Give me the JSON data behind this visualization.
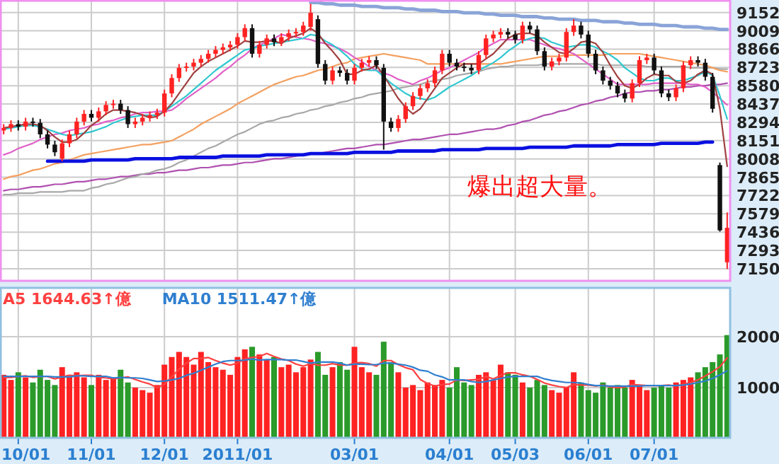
{
  "chart_data": [
    {
      "type": "candlestick",
      "categories": [
        null,
        null,
        null,
        null,
        null,
        null,
        null,
        null,
        null,
        null,
        null,
        null,
        null,
        null,
        null,
        null,
        null,
        null,
        null,
        null,
        null,
        null,
        null,
        null,
        null,
        null,
        null,
        null,
        null,
        null,
        null,
        null,
        null,
        null,
        null,
        null,
        null,
        null,
        null,
        null,
        null,
        null,
        null,
        null,
        null,
        null,
        null,
        null,
        null,
        null,
        null,
        null,
        null,
        null,
        null,
        null,
        null,
        null,
        null,
        null,
        null,
        null,
        null,
        null,
        null,
        null,
        null,
        null,
        null,
        null,
        null,
        null,
        null,
        null,
        null,
        null,
        null,
        null,
        null,
        null,
        null,
        null,
        null,
        null,
        null,
        null,
        null,
        null,
        null,
        null,
        null,
        null,
        null,
        null,
        null,
        null,
        null,
        null,
        null,
        null
      ],
      "ohlc": [
        [
          8230,
          8280,
          8200,
          8250
        ],
        [
          8250,
          8310,
          8220,
          8280
        ],
        [
          8280,
          8310,
          8230,
          8260
        ],
        [
          8260,
          8330,
          8230,
          8300
        ],
        [
          8300,
          8330,
          8260,
          8290
        ],
        [
          8290,
          8320,
          8170,
          8200
        ],
        [
          8200,
          8230,
          8090,
          8120
        ],
        [
          8120,
          8150,
          8030,
          8060
        ],
        [
          8010,
          8160,
          7990,
          8130
        ],
        [
          8130,
          8230,
          8100,
          8200
        ],
        [
          8200,
          8330,
          8170,
          8300
        ],
        [
          8300,
          8390,
          8270,
          8360
        ],
        [
          8360,
          8390,
          8300,
          8330
        ],
        [
          8330,
          8410,
          8300,
          8380
        ],
        [
          8380,
          8460,
          8350,
          8430
        ],
        [
          8430,
          8470,
          8400,
          8440
        ],
        [
          8440,
          8470,
          8360,
          8390
        ],
        [
          8390,
          8420,
          8250,
          8280
        ],
        [
          8280,
          8330,
          8250,
          8300
        ],
        [
          8300,
          8360,
          8270,
          8330
        ],
        [
          8330,
          8380,
          8300,
          8350
        ],
        [
          8350,
          8400,
          8320,
          8370
        ],
        [
          8370,
          8550,
          8340,
          8520
        ],
        [
          8520,
          8670,
          8490,
          8640
        ],
        [
          8640,
          8750,
          8610,
          8720
        ],
        [
          8720,
          8760,
          8690,
          8730
        ],
        [
          8730,
          8790,
          8700,
          8760
        ],
        [
          8760,
          8820,
          8730,
          8790
        ],
        [
          8790,
          8860,
          8760,
          8830
        ],
        [
          8830,
          8890,
          8800,
          8860
        ],
        [
          8860,
          8910,
          8830,
          8880
        ],
        [
          8880,
          8930,
          8850,
          8900
        ],
        [
          8900,
          8990,
          8870,
          8960
        ],
        [
          8960,
          9060,
          8930,
          9030
        ],
        [
          9030,
          9060,
          8800,
          8830
        ],
        [
          8830,
          8930,
          8800,
          8900
        ],
        [
          8900,
          8980,
          8870,
          8950
        ],
        [
          8950,
          8980,
          8890,
          8920
        ],
        [
          8920,
          8990,
          8890,
          8960
        ],
        [
          8960,
          9020,
          8930,
          8990
        ],
        [
          8990,
          9030,
          8960,
          9000
        ],
        [
          9000,
          9080,
          8970,
          9050
        ],
        [
          9040,
          9220,
          9010,
          9150
        ],
        [
          9100,
          9130,
          8720,
          8750
        ],
        [
          8750,
          8780,
          8590,
          8620
        ],
        [
          8620,
          8730,
          8590,
          8700
        ],
        [
          8700,
          8730,
          8650,
          8680
        ],
        [
          8680,
          8710,
          8590,
          8620
        ],
        [
          8620,
          8750,
          8590,
          8720
        ],
        [
          8720,
          8790,
          8690,
          8760
        ],
        [
          8760,
          8810,
          8730,
          8780
        ],
        [
          8780,
          8810,
          8710,
          8740
        ],
        [
          8720,
          8750,
          8080,
          8300
        ],
        [
          8300,
          8330,
          8220,
          8250
        ],
        [
          8250,
          8350,
          8220,
          8320
        ],
        [
          8320,
          8450,
          8290,
          8420
        ],
        [
          8420,
          8530,
          8390,
          8500
        ],
        [
          8500,
          8590,
          8470,
          8560
        ],
        [
          8560,
          8630,
          8530,
          8600
        ],
        [
          8600,
          8730,
          8570,
          8700
        ],
        [
          8700,
          8860,
          8670,
          8830
        ],
        [
          8830,
          8860,
          8730,
          8760
        ],
        [
          8760,
          8790,
          8700,
          8730
        ],
        [
          8730,
          8760,
          8690,
          8720
        ],
        [
          8720,
          8750,
          8670,
          8700
        ],
        [
          8700,
          8850,
          8670,
          8820
        ],
        [
          8820,
          8980,
          8790,
          8950
        ],
        [
          8950,
          9010,
          8920,
          8980
        ],
        [
          8980,
          9030,
          8950,
          9000
        ],
        [
          9000,
          9030,
          8950,
          8980
        ],
        [
          8980,
          9010,
          8910,
          8940
        ],
        [
          8940,
          9080,
          8910,
          9050
        ],
        [
          9050,
          9080,
          8990,
          9020
        ],
        [
          9020,
          9050,
          8820,
          8850
        ],
        [
          8850,
          8880,
          8700,
          8730
        ],
        [
          8730,
          8800,
          8700,
          8770
        ],
        [
          8770,
          8830,
          8740,
          8800
        ],
        [
          8800,
          9030,
          8770,
          9000
        ],
        [
          9000,
          9100,
          8970,
          9050
        ],
        [
          9050,
          9080,
          8950,
          8980
        ],
        [
          8980,
          9010,
          8800,
          8830
        ],
        [
          8830,
          8860,
          8670,
          8700
        ],
        [
          8700,
          8730,
          8590,
          8620
        ],
        [
          8620,
          8650,
          8550,
          8580
        ],
        [
          8580,
          8610,
          8490,
          8520
        ],
        [
          8520,
          8550,
          8450,
          8480
        ],
        [
          8480,
          8630,
          8450,
          8600
        ],
        [
          8600,
          8810,
          8570,
          8780
        ],
        [
          8780,
          8830,
          8750,
          8800
        ],
        [
          8800,
          8830,
          8670,
          8700
        ],
        [
          8700,
          8730,
          8490,
          8520
        ],
        [
          8520,
          8550,
          8460,
          8490
        ],
        [
          8490,
          8590,
          8460,
          8560
        ],
        [
          8560,
          8770,
          8530,
          8740
        ],
        [
          8740,
          8810,
          8710,
          8780
        ],
        [
          8780,
          8810,
          8730,
          8760
        ],
        [
          8760,
          8790,
          8620,
          8650
        ],
        [
          8650,
          8680,
          8370,
          8400
        ],
        [
          7960,
          7980,
          7440,
          7450
        ],
        [
          7200,
          7590,
          7148,
          7470
        ]
      ],
      "colors": [
        "#ff2222",
        "#ff2222",
        "#111111",
        "#ff2222",
        "#111111",
        "#111111",
        "#111111",
        "#111111",
        "#ff2222",
        "#ff2222",
        "#ff2222",
        "#ff2222",
        "#111111",
        "#ff2222",
        "#ff2222",
        "#ff2222",
        "#111111",
        "#111111",
        "#ff2222",
        "#ff2222",
        "#ff2222",
        "#ff2222",
        "#ff2222",
        "#ff2222",
        "#ff2222",
        "#ff2222",
        "#ff2222",
        "#ff2222",
        "#ff2222",
        "#ff2222",
        "#ff2222",
        "#ff2222",
        "#ff2222",
        "#ff2222",
        "#111111",
        "#ff2222",
        "#ff2222",
        "#111111",
        "#ff2222",
        "#ff2222",
        "#ff2222",
        "#ff2222",
        "#ff2222",
        "#111111",
        "#111111",
        "#ff2222",
        "#111111",
        "#111111",
        "#ff2222",
        "#ff2222",
        "#ff2222",
        "#111111",
        "#111111",
        "#111111",
        "#ff2222",
        "#ff2222",
        "#ff2222",
        "#ff2222",
        "#ff2222",
        "#ff2222",
        "#ff2222",
        "#111111",
        "#111111",
        "#111111",
        "#111111",
        "#ff2222",
        "#ff2222",
        "#ff2222",
        "#ff2222",
        "#111111",
        "#111111",
        "#ff2222",
        "#111111",
        "#111111",
        "#111111",
        "#ff2222",
        "#ff2222",
        "#ff2222",
        "#ff2222",
        "#111111",
        "#111111",
        "#111111",
        "#111111",
        "#111111",
        "#111111",
        "#111111",
        "#ff2222",
        "#ff2222",
        "#ff2222",
        "#111111",
        "#111111",
        "#111111",
        "#ff2222",
        "#ff2222",
        "#ff2222",
        "#111111",
        "#111111",
        "#111111",
        "#111111",
        "#ff2222"
      ],
      "series": [
        {
          "type": "line",
          "color": "#b050b0",
          "values": [
            7760,
            7770,
            7770,
            7780,
            7790,
            7790,
            7800,
            7810,
            7810,
            7820,
            7830,
            7830,
            7840,
            7850,
            7850,
            7860,
            7870,
            7870,
            7880,
            7890,
            7890,
            7900,
            7900,
            7910,
            7920,
            7920,
            7930,
            7940,
            7940,
            7950,
            7960,
            7960,
            7970,
            7980,
            7980,
            7990,
            8000,
            8010,
            8010,
            8020,
            8030,
            8040,
            8050,
            8050,
            8060,
            8070,
            8080,
            8090,
            8090,
            8100,
            8110,
            8120,
            8120,
            8130,
            8140,
            8150,
            8160,
            8160,
            8170,
            8180,
            8190,
            8200,
            8200,
            8210,
            8220,
            8230,
            8240,
            8240,
            8250,
            8270,
            8280,
            8300,
            8310,
            8330,
            8350,
            8360,
            8380,
            8390,
            8410,
            8430,
            8440,
            8460,
            8470,
            8490,
            8500,
            8520,
            8530,
            8530,
            8540,
            8540,
            8550,
            8550,
            8560,
            8570,
            8570,
            8580,
            8580,
            8590,
            8590,
            8600
          ]
        },
        {
          "type": "line",
          "color": "#a8a8a8",
          "values": [
            7730,
            7730,
            7740,
            7740,
            7740,
            7750,
            7750,
            7750,
            7750,
            7760,
            7760,
            7760,
            7780,
            7790,
            7810,
            7820,
            7840,
            7860,
            7870,
            7890,
            7900,
            7920,
            7930,
            7950,
            7980,
            8000,
            8030,
            8060,
            8090,
            8110,
            8140,
            8170,
            8200,
            8220,
            8250,
            8280,
            8300,
            8310,
            8330,
            8340,
            8360,
            8370,
            8390,
            8400,
            8420,
            8430,
            8450,
            8460,
            8480,
            8490,
            8510,
            8520,
            8530,
            8540,
            8560,
            8570,
            8580,
            8590,
            8610,
            8620,
            8630,
            8640,
            8660,
            8670,
            8680,
            8690,
            8710,
            8720,
            8730,
            8730,
            8740,
            8740,
            8740,
            8740,
            8750,
            8750,
            8750,
            8750,
            8750,
            8750,
            8750,
            8750,
            8740,
            8740,
            8740,
            8740,
            8740,
            8740,
            8730,
            8730,
            8730,
            8730,
            8730,
            8730,
            8720,
            8720,
            8720,
            8720,
            8710,
            8710
          ]
        },
        {
          "type": "line",
          "color": "#f4a060",
          "values": [
            7850,
            7870,
            7880,
            7900,
            7920,
            7930,
            7950,
            7970,
            7980,
            8000,
            8020,
            8040,
            8050,
            8060,
            8070,
            8080,
            8090,
            8100,
            8110,
            8120,
            8120,
            8130,
            8140,
            8150,
            8180,
            8210,
            8240,
            8280,
            8310,
            8340,
            8370,
            8400,
            8440,
            8470,
            8500,
            8530,
            8560,
            8590,
            8610,
            8630,
            8650,
            8660,
            8680,
            8700,
            8710,
            8730,
            8750,
            8760,
            8790,
            8800,
            8810,
            8820,
            8830,
            8820,
            8810,
            8800,
            8790,
            8780,
            8750,
            8750,
            8750,
            8750,
            8750,
            8750,
            8750,
            8750,
            8750,
            8750,
            8750,
            8760,
            8770,
            8780,
            8790,
            8800,
            8810,
            8810,
            8810,
            8820,
            8820,
            8820,
            8820,
            8820,
            8820,
            8830,
            8830,
            8830,
            8830,
            8830,
            8820,
            8810,
            8800,
            8790,
            8780,
            8770,
            8760,
            8750,
            8740,
            8720,
            8700,
            8690
          ]
        },
        {
          "type": "line",
          "color": "#e060c8",
          "values": [
            8040,
            8060,
            8090,
            8110,
            8130,
            8160,
            8180,
            8200,
            8210,
            8230,
            8240,
            8250,
            8270,
            8280,
            8300,
            8310,
            8330,
            8340,
            8360,
            8370,
            8370,
            8380,
            8380,
            8390,
            8430,
            8480,
            8520,
            8560,
            8600,
            8640,
            8690,
            8730,
            8780,
            8820,
            8870,
            8900,
            8920,
            8950,
            8980,
            8970,
            8960,
            8950,
            8940,
            8920,
            8910,
            8890,
            8870,
            8840,
            8800,
            8770,
            8730,
            8700,
            8680,
            8660,
            8630,
            8610,
            8590,
            8620,
            8640,
            8670,
            8700,
            8720,
            8750,
            8780,
            8810,
            8840,
            8880,
            8910,
            8940,
            8940,
            8940,
            8940,
            8940,
            8920,
            8900,
            8880,
            8870,
            8850,
            8830,
            8790,
            8750,
            8710,
            8670,
            8630,
            8590,
            8590,
            8590,
            8590,
            8590,
            8600,
            8600,
            8600,
            8600,
            8600,
            8590,
            8590,
            8570,
            8530,
            8480,
            8430
          ]
        },
        {
          "type": "line",
          "color": "#30c8d0",
          "values": [
            8240,
            8250,
            8260,
            8270,
            8270,
            8260,
            8240,
            8220,
            8200,
            8190,
            8200,
            8210,
            8220,
            8240,
            8260,
            8290,
            8310,
            8330,
            8340,
            8350,
            8350,
            8350,
            8380,
            8420,
            8460,
            8500,
            8550,
            8600,
            8650,
            8700,
            8740,
            8780,
            8820,
            8860,
            8870,
            8890,
            8900,
            8910,
            8920,
            8930,
            8940,
            8950,
            8980,
            8970,
            8930,
            8900,
            8860,
            8810,
            8750,
            8710,
            8700,
            8700,
            8650,
            8600,
            8560,
            8520,
            8490,
            8480,
            8470,
            8490,
            8530,
            8570,
            8600,
            8630,
            8660,
            8700,
            8730,
            8760,
            8800,
            8850,
            8890,
            8930,
            8950,
            8960,
            8950,
            8920,
            8900,
            8880,
            8890,
            8900,
            8900,
            8880,
            8850,
            8820,
            8780,
            8720,
            8680,
            8640,
            8620,
            8620,
            8640,
            8640,
            8620,
            8620,
            8640,
            8660,
            8690,
            8660,
            8500,
            8320
          ]
        },
        {
          "type": "line",
          "color": "#a04040",
          "values": [
            8250,
            8260,
            8270,
            8280,
            8280,
            8270,
            8230,
            8180,
            8140,
            8140,
            8160,
            8210,
            8270,
            8310,
            8360,
            8390,
            8390,
            8380,
            8370,
            8350,
            8330,
            8340,
            8380,
            8440,
            8520,
            8600,
            8680,
            8730,
            8770,
            8800,
            8830,
            8860,
            8890,
            8930,
            8920,
            8920,
            8930,
            8930,
            8910,
            8950,
            8970,
            8990,
            9030,
            8990,
            8910,
            8850,
            8780,
            8670,
            8670,
            8700,
            8710,
            8740,
            8660,
            8570,
            8480,
            8410,
            8360,
            8400,
            8480,
            8560,
            8640,
            8680,
            8720,
            8750,
            8750,
            8750,
            8790,
            8830,
            8890,
            8950,
            8980,
            8990,
            8990,
            8970,
            8920,
            8880,
            8840,
            8830,
            8870,
            8920,
            8930,
            8910,
            8840,
            8740,
            8650,
            8580,
            8560,
            8590,
            8640,
            8670,
            8660,
            8660,
            8610,
            8600,
            8620,
            8670,
            8700,
            8670,
            8400,
            7950
          ]
        },
        {
          "type": "line",
          "color": "#0a10e0",
          "values": [
            null,
            null,
            null,
            null,
            null,
            null,
            7990,
            7990,
            7990,
            7990,
            7990,
            7990,
            8000,
            8000,
            8000,
            8000,
            8000,
            8000,
            8010,
            8010,
            8010,
            8010,
            8010,
            8010,
            8020,
            8020,
            8020,
            8020,
            8020,
            8020,
            8030,
            8030,
            8030,
            8030,
            8030,
            8030,
            8040,
            8040,
            8040,
            8040,
            8040,
            8040,
            8050,
            8050,
            8050,
            8050,
            8050,
            8050,
            8060,
            8060,
            8060,
            8060,
            8060,
            8060,
            8070,
            8070,
            8070,
            8070,
            8070,
            8070,
            8080,
            8080,
            8080,
            8080,
            8080,
            8080,
            8090,
            8090,
            8090,
            8090,
            8090,
            8090,
            8100,
            8100,
            8100,
            8100,
            8100,
            8100,
            8110,
            8110,
            8110,
            8110,
            8110,
            8110,
            8120,
            8120,
            8120,
            8120,
            8120,
            8120,
            8130,
            8130,
            8130,
            8130,
            8130,
            8130,
            8140,
            8140,
            null,
            null
          ]
        },
        {
          "type": "line",
          "color": "#8aa4d8",
          "values": [
            null,
            null,
            null,
            null,
            null,
            null,
            null,
            null,
            null,
            null,
            null,
            null,
            null,
            null,
            null,
            null,
            null,
            null,
            null,
            null,
            null,
            null,
            null,
            null,
            null,
            null,
            null,
            null,
            null,
            null,
            null,
            null,
            null,
            null,
            null,
            null,
            null,
            null,
            null,
            null,
            null,
            null,
            9230,
            9230,
            9220,
            9220,
            9210,
            9210,
            9210,
            9200,
            9200,
            9200,
            9190,
            9190,
            9190,
            9180,
            9180,
            9170,
            9170,
            9170,
            9160,
            9160,
            9160,
            9150,
            9150,
            9150,
            9140,
            9140,
            9130,
            9130,
            9130,
            9120,
            9120,
            9120,
            9110,
            9110,
            9100,
            9100,
            9100,
            9090,
            9090,
            9090,
            9080,
            9080,
            9080,
            9070,
            9070,
            9060,
            9060,
            9060,
            9050,
            9050,
            9050,
            9040,
            9040,
            9040,
            9030,
            9030,
            9020,
            9020
          ]
        }
      ],
      "ylim": [
        7050,
        9250
      ],
      "yticks": [
        7150,
        7293,
        7436,
        7579,
        7722,
        7865,
        8008,
        8151,
        8294,
        8437,
        8580,
        8723,
        8866,
        9009,
        9152
      ],
      "grid": true,
      "tick_labels": "y",
      "annotations": [
        "爆出超大量。"
      ]
    },
    {
      "type": "bar",
      "categories": [
        null,
        null,
        "10/01",
        null,
        null,
        null,
        null,
        null,
        null,
        null,
        null,
        null,
        "11/01",
        null,
        null,
        null,
        null,
        null,
        null,
        null,
        null,
        null,
        "12/01",
        null,
        null,
        null,
        null,
        null,
        null,
        null,
        null,
        null,
        "2011/01",
        null,
        null,
        null,
        null,
        null,
        null,
        null,
        null,
        null,
        null,
        null,
        null,
        null,
        null,
        null,
        "03/01",
        null,
        null,
        null,
        null,
        null,
        null,
        null,
        null,
        null,
        null,
        null,
        null,
        "04/01",
        null,
        null,
        null,
        null,
        null,
        null,
        null,
        null,
        "05/03",
        null,
        null,
        null,
        null,
        null,
        null,
        null,
        null,
        null,
        "06/01",
        null,
        null,
        null,
        null,
        null,
        null,
        null,
        null,
        "07/01",
        null,
        null,
        null,
        null,
        null,
        null,
        null,
        null,
        null,
        null
      ],
      "values": [
        1250,
        1150,
        1300,
        1200,
        1100,
        1350,
        1150,
        1050,
        1400,
        1250,
        1300,
        1200,
        1050,
        1250,
        1150,
        1200,
        1350,
        1100,
        1000,
        950,
        900,
        1050,
        1450,
        1600,
        1700,
        1600,
        1450,
        1700,
        1500,
        1400,
        1350,
        1250,
        1600,
        1750,
        1800,
        1650,
        1550,
        1600,
        1400,
        1450,
        1300,
        1400,
        1550,
        1700,
        1250,
        1400,
        1500,
        1350,
        1800,
        1400,
        1300,
        1250,
        1900,
        1500,
        1300,
        1000,
        1050,
        950,
        1100,
        1050,
        1150,
        1000,
        1400,
        1100,
        1050,
        1250,
        1300,
        1150,
        1450,
        1300,
        1250,
        1100,
        1000,
        1150,
        1050,
        950,
        900,
        1000,
        1300,
        1100,
        950,
        900,
        1100,
        1000,
        1050,
        1000,
        1150,
        1050,
        950,
        1000,
        1050,
        1000,
        1100,
        1150,
        1200,
        1300,
        1400,
        1500,
        1650,
        2030
      ],
      "colors": [
        "#ff2222",
        "#ff2222",
        "#2a9a2a",
        "#ff2222",
        "#2a9a2a",
        "#2a9a2a",
        "#2a9a2a",
        "#2a9a2a",
        "#ff2222",
        "#ff2222",
        "#ff2222",
        "#ff2222",
        "#2a9a2a",
        "#ff2222",
        "#ff2222",
        "#ff2222",
        "#2a9a2a",
        "#2a9a2a",
        "#ff2222",
        "#ff2222",
        "#ff2222",
        "#ff2222",
        "#ff2222",
        "#ff2222",
        "#ff2222",
        "#ff2222",
        "#ff2222",
        "#ff2222",
        "#ff2222",
        "#ff2222",
        "#ff2222",
        "#ff2222",
        "#ff2222",
        "#ff2222",
        "#2a9a2a",
        "#ff2222",
        "#ff2222",
        "#2a9a2a",
        "#ff2222",
        "#ff2222",
        "#ff2222",
        "#ff2222",
        "#ff2222",
        "#2a9a2a",
        "#2a9a2a",
        "#ff2222",
        "#2a9a2a",
        "#2a9a2a",
        "#ff2222",
        "#ff2222",
        "#ff2222",
        "#2a9a2a",
        "#2a9a2a",
        "#2a9a2a",
        "#ff2222",
        "#ff2222",
        "#ff2222",
        "#ff2222",
        "#ff2222",
        "#ff2222",
        "#ff2222",
        "#2a9a2a",
        "#2a9a2a",
        "#2a9a2a",
        "#2a9a2a",
        "#ff2222",
        "#ff2222",
        "#ff2222",
        "#ff2222",
        "#2a9a2a",
        "#2a9a2a",
        "#ff2222",
        "#2a9a2a",
        "#2a9a2a",
        "#2a9a2a",
        "#ff2222",
        "#ff2222",
        "#ff2222",
        "#ff2222",
        "#2a9a2a",
        "#2a9a2a",
        "#2a9a2a",
        "#2a9a2a",
        "#2a9a2a",
        "#2a9a2a",
        "#2a9a2a",
        "#ff2222",
        "#ff2222",
        "#ff2222",
        "#2a9a2a",
        "#2a9a2a",
        "#2a9a2a",
        "#ff2222",
        "#ff2222",
        "#ff2222",
        "#2a9a2a",
        "#2a9a2a",
        "#2a9a2a",
        "#2a9a2a",
        "#2a9a2a"
      ],
      "series": [
        {
          "type": "line",
          "name": "A5 1644.63↑億",
          "color": "#ff4040",
          "values": [
            1200,
            1200,
            1220,
            1230,
            1200,
            1220,
            1220,
            1170,
            1210,
            1240,
            1230,
            1240,
            1240,
            1200,
            1190,
            1170,
            1190,
            1210,
            1160,
            1110,
            1070,
            1000,
            1070,
            1210,
            1360,
            1480,
            1570,
            1570,
            1590,
            1530,
            1480,
            1440,
            1480,
            1560,
            1590,
            1610,
            1670,
            1610,
            1560,
            1530,
            1460,
            1420,
            1470,
            1440,
            1440,
            1470,
            1440,
            1440,
            1480,
            1490,
            1470,
            1420,
            1530,
            1530,
            1450,
            1390,
            1350,
            1160,
            1080,
            1030,
            1060,
            1070,
            1150,
            1140,
            1150,
            1160,
            1220,
            1170,
            1240,
            1290,
            1290,
            1250,
            1220,
            1160,
            1090,
            1050,
            1020,
            1000,
            1060,
            1050,
            1050,
            1030,
            1050,
            1010,
            1000,
            1010,
            1060,
            1050,
            1040,
            1040,
            1040,
            1050,
            1030,
            1060,
            1100,
            1150,
            1230,
            1310,
            1410,
            1580
          ]
        },
        {
          "type": "line",
          "name": "MA10 1511.47↑億",
          "color": "#2f7fd0",
          "values": [
            1220,
            1220,
            1220,
            1220,
            1220,
            1220,
            1220,
            1210,
            1210,
            1210,
            1230,
            1230,
            1220,
            1220,
            1220,
            1190,
            1200,
            1190,
            1190,
            1180,
            1150,
            1120,
            1130,
            1150,
            1180,
            1240,
            1280,
            1340,
            1400,
            1460,
            1510,
            1530,
            1530,
            1540,
            1560,
            1540,
            1550,
            1550,
            1550,
            1540,
            1540,
            1510,
            1480,
            1500,
            1500,
            1500,
            1480,
            1440,
            1460,
            1460,
            1450,
            1450,
            1480,
            1480,
            1460,
            1440,
            1400,
            1340,
            1320,
            1250,
            1210,
            1150,
            1150,
            1150,
            1120,
            1100,
            1120,
            1150,
            1180,
            1210,
            1220,
            1220,
            1220,
            1220,
            1170,
            1140,
            1120,
            1100,
            1100,
            1090,
            1060,
            1040,
            1040,
            1030,
            1030,
            1030,
            1030,
            1030,
            1040,
            1040,
            1040,
            1040,
            1040,
            1050,
            1070,
            1100,
            1130,
            1180,
            1250,
            1330
          ]
        }
      ],
      "ylim": [
        0,
        2970
      ],
      "yticks": [
        1000,
        2000
      ],
      "grid": true,
      "legend": "top left"
    }
  ]
}
